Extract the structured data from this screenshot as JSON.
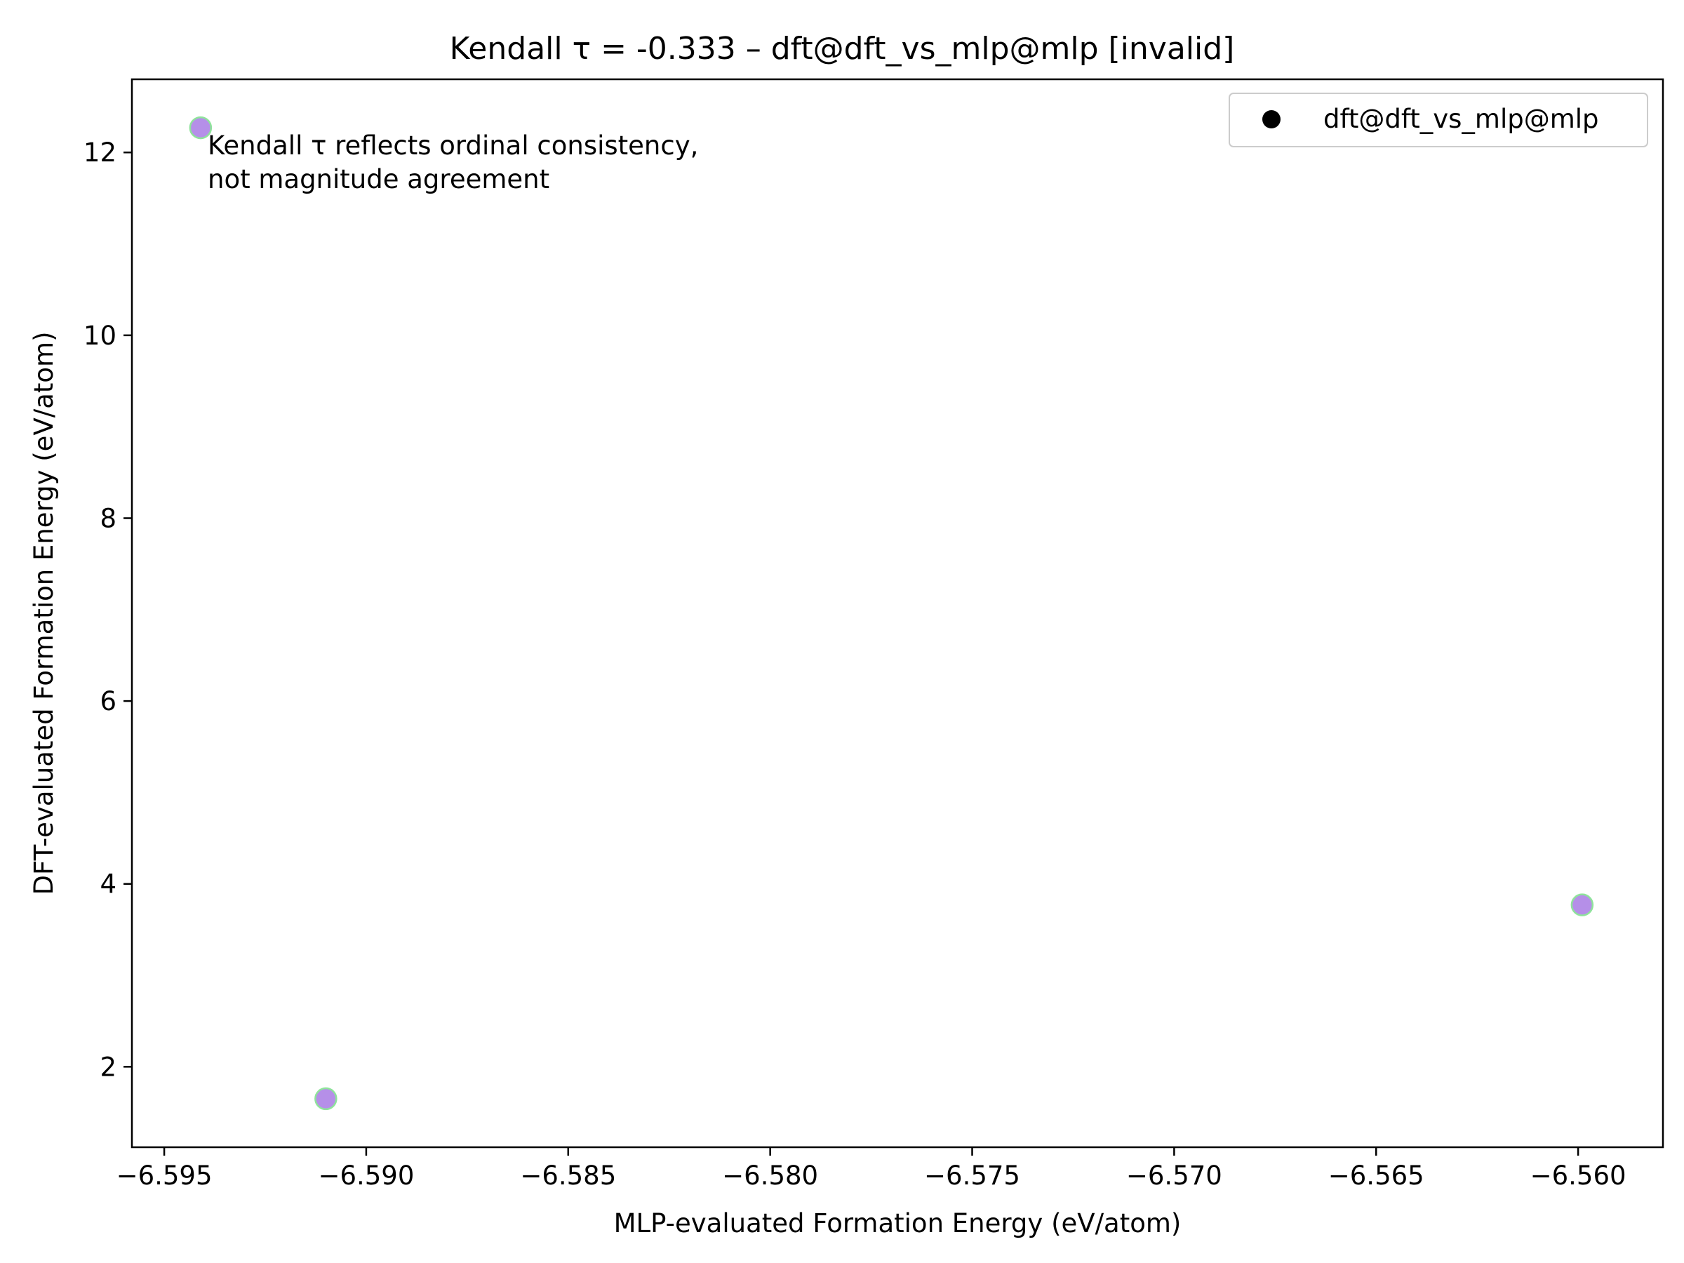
{
  "chart_data": {
    "type": "scatter",
    "title": "Kendall τ = -0.333 – dft@dft_vs_mlp@mlp [invalid]",
    "xlabel": "MLP-evaluated Formation Energy (eV/atom)",
    "ylabel": "DFT-evaluated Formation Energy (eV/atom)",
    "xlim": [
      -6.5958,
      -6.5579
    ],
    "ylim": [
      1.12,
      12.8
    ],
    "xticks": [
      -6.595,
      -6.59,
      -6.585,
      -6.58,
      -6.575,
      -6.57,
      -6.565,
      -6.56
    ],
    "xtick_labels": [
      "−6.595",
      "−6.590",
      "−6.585",
      "−6.580",
      "−6.575",
      "−6.570",
      "−6.565",
      "−6.560"
    ],
    "yticks": [
      2,
      4,
      6,
      8,
      10,
      12
    ],
    "ytick_labels": [
      "2",
      "4",
      "6",
      "8",
      "10",
      "12"
    ],
    "grid": false,
    "legend": {
      "placement": "top-right",
      "entries": [
        "dft@dft_vs_mlp@mlp"
      ]
    },
    "annotation": {
      "lines": [
        "Kendall τ reflects ordinal consistency,",
        "not magnitude agreement"
      ],
      "placement": "top-left"
    },
    "series": [
      {
        "name": "dft@dft_vs_mlp@mlp",
        "color": "#b58fe8",
        "edge_color": "#8fe39b",
        "points": [
          {
            "x": -6.5941,
            "y": 12.27
          },
          {
            "x": -6.591,
            "y": 1.65
          },
          {
            "x": -6.5599,
            "y": 3.77
          }
        ]
      }
    ]
  }
}
